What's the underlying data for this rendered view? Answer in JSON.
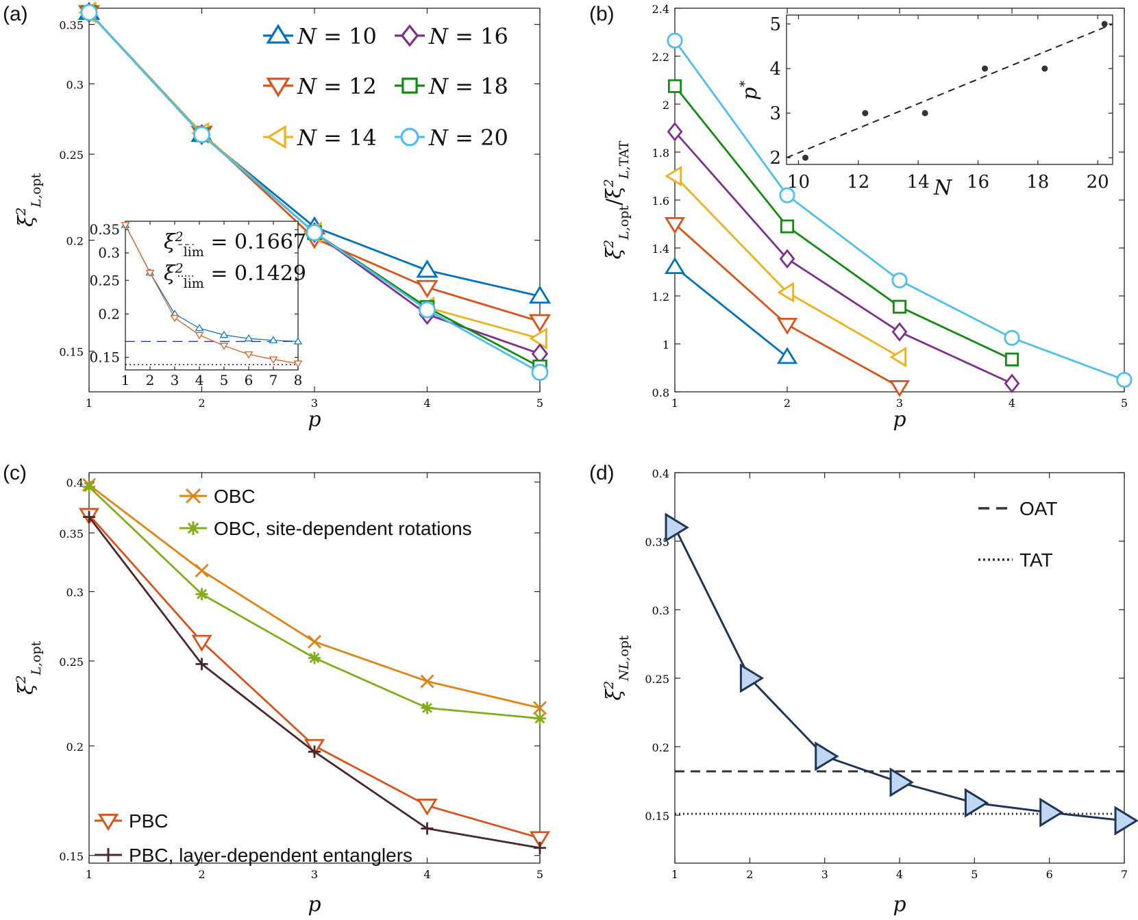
{
  "chart_data": [
    {
      "panel": "(a)",
      "type": "line",
      "xlabel": "p",
      "ylabel": "ξ²_{L,opt}",
      "ylog": true,
      "xlim": [
        1,
        5
      ],
      "ylim": [
        0.135,
        0.365
      ],
      "xticks": [
        1,
        2,
        3,
        4,
        5
      ],
      "yticks": [
        0.15,
        0.2,
        0.25,
        0.3,
        0.35
      ],
      "x": [
        1,
        2,
        3,
        4,
        5
      ],
      "series": [
        {
          "name": "N = 10",
          "color": "#0072BD",
          "marker": "triangle-up",
          "values": [
            0.361,
            0.263,
            0.207,
            0.185,
            0.173
          ]
        },
        {
          "name": "N = 12",
          "color": "#D95319",
          "marker": "triangle-down",
          "values": [
            0.361,
            0.264,
            0.201,
            0.177,
            0.162
          ]
        },
        {
          "name": "N = 14",
          "color": "#EDB120",
          "marker": "triangle-left",
          "values": [
            0.361,
            0.264,
            0.204,
            0.168,
            0.155
          ]
        },
        {
          "name": "N = 16",
          "color": "#7E2F8E",
          "marker": "diamond",
          "values": [
            0.361,
            0.263,
            0.204,
            0.165,
            0.149
          ]
        },
        {
          "name": "N = 18",
          "color": "#118C11",
          "marker": "square",
          "values": [
            0.361,
            0.263,
            0.204,
            0.168,
            0.144
          ]
        },
        {
          "name": "N = 20",
          "color": "#4DBEEE",
          "marker": "circle",
          "values": [
            0.361,
            0.263,
            0.204,
            0.167,
            0.142
          ]
        }
      ],
      "inset": {
        "x": [
          1,
          2,
          3,
          4,
          5,
          6,
          7,
          8
        ],
        "xlim": [
          1,
          8
        ],
        "ylim": [
          0.138,
          0.37
        ],
        "xticks": [
          1,
          2,
          3,
          4,
          5,
          6,
          7,
          8
        ],
        "yticks": [
          0.15,
          0.2,
          0.25,
          0.3,
          0.35
        ],
        "series": [
          {
            "name": "blue",
            "color": "#0072BD",
            "marker": "triangle-up",
            "values": [
              0.361,
              0.263,
              0.2,
              0.182,
              0.174,
              0.17,
              0.168,
              0.1667
            ]
          },
          {
            "name": "orange",
            "color": "#D95319",
            "marker": "triangle-down",
            "values": [
              0.361,
              0.263,
              0.195,
              0.174,
              0.162,
              0.153,
              0.148,
              0.144
            ]
          }
        ],
        "hlines": [
          {
            "value": 0.1667,
            "style": "dashed",
            "color": "#1f3a7a",
            "label": "ξ²_lim = 0.1667"
          },
          {
            "value": 0.1429,
            "style": "dotted",
            "color": "#111111",
            "label": "ξ²_lim = 0.1429"
          }
        ]
      }
    },
    {
      "panel": "(b)",
      "type": "line",
      "xlabel": "p",
      "ylabel": "ξ²_{L,opt}/ξ²_{L,TAT}",
      "xlim": [
        1,
        5
      ],
      "ylim": [
        0.8,
        2.4
      ],
      "xticks": [
        1,
        2,
        3,
        4,
        5
      ],
      "yticks": [
        0.8,
        1,
        1.2,
        1.4,
        1.6,
        1.8,
        2,
        2.2,
        2.4
      ],
      "series": [
        {
          "name": "N = 10",
          "color": "#0072BD",
          "marker": "triangle-up",
          "x": [
            1,
            2
          ],
          "values": [
            1.32,
            0.945
          ]
        },
        {
          "name": "N = 12",
          "color": "#D95319",
          "marker": "triangle-down",
          "x": [
            1,
            2,
            3
          ],
          "values": [
            1.5,
            1.08,
            0.82
          ]
        },
        {
          "name": "N = 14",
          "color": "#EDB120",
          "marker": "triangle-left",
          "x": [
            1,
            2,
            3
          ],
          "values": [
            1.7,
            1.215,
            0.945
          ]
        },
        {
          "name": "N = 16",
          "color": "#7E2F8E",
          "marker": "diamond",
          "x": [
            1,
            2,
            3,
            4
          ],
          "values": [
            1.885,
            1.355,
            1.05,
            0.835
          ]
        },
        {
          "name": "N = 18",
          "color": "#118C11",
          "marker": "square",
          "x": [
            1,
            2,
            3,
            4
          ],
          "values": [
            2.075,
            1.49,
            1.155,
            0.935
          ]
        },
        {
          "name": "N = 20",
          "color": "#4DBEEE",
          "marker": "circle",
          "x": [
            1,
            2,
            3,
            4,
            5
          ],
          "values": [
            2.265,
            1.62,
            1.265,
            1.025,
            0.85
          ]
        }
      ],
      "inset": {
        "type": "scatter",
        "xlabel": "N",
        "ylabel": "p*",
        "xlim": [
          9.6,
          20.5
        ],
        "ylim": [
          1.85,
          5.2
        ],
        "xticks": [
          10,
          12,
          14,
          16,
          18,
          20
        ],
        "yticks": [
          2,
          3,
          4,
          5
        ],
        "x": [
          10,
          12,
          14,
          16,
          18,
          20
        ],
        "values": [
          2,
          3,
          3,
          4,
          4,
          5
        ],
        "fit": {
          "x": [
            9.6,
            20.5
          ],
          "values": [
            2.0,
            5.0
          ],
          "style": "dashed"
        }
      }
    },
    {
      "panel": "(c)",
      "type": "line",
      "xlabel": "p",
      "ylabel": "ξ²_{L,opt}",
      "ylog": true,
      "xlim": [
        1,
        5
      ],
      "ylim": [
        0.147,
        0.41
      ],
      "xticks": [
        1,
        2,
        3,
        4,
        5
      ],
      "yticks": [
        0.15,
        0.2,
        0.25,
        0.3,
        0.35,
        0.4
      ],
      "x": [
        1,
        2,
        3,
        4,
        5
      ],
      "series": [
        {
          "name": "OBC",
          "color": "#E08214",
          "marker": "x",
          "values": [
            0.397,
            0.317,
            0.263,
            0.237,
            0.221
          ]
        },
        {
          "name": "OBC, site-dependent rotations",
          "color": "#7FAE1A",
          "marker": "asterisk",
          "values": [
            0.395,
            0.298,
            0.252,
            0.221,
            0.215
          ]
        },
        {
          "name": "PBC",
          "color": "#D95319",
          "marker": "triangle-down",
          "values": [
            0.367,
            0.263,
            0.2,
            0.171,
            0.157
          ]
        },
        {
          "name": "PBC, layer-dependent entanglers",
          "color": "#4A2828",
          "marker": "plus",
          "values": [
            0.365,
            0.248,
            0.197,
            0.161,
            0.153
          ]
        }
      ]
    },
    {
      "panel": "(d)",
      "type": "line",
      "xlabel": "p",
      "ylabel": "ξ²_{NL,opt}",
      "xlim": [
        1,
        7
      ],
      "ylim": [
        0.115,
        0.4
      ],
      "xticks": [
        1,
        2,
        3,
        4,
        5,
        6,
        7
      ],
      "yticks": [
        0.15,
        0.2,
        0.25,
        0.3,
        0.35,
        0.4
      ],
      "x": [
        1,
        2,
        3,
        4,
        5,
        6,
        7
      ],
      "series": [
        {
          "name": "data",
          "color": "#1F3556",
          "fill": "#BFD7F2",
          "marker": "triangle-right",
          "values": [
            0.36,
            0.25,
            0.193,
            0.174,
            0.159,
            0.152,
            0.146
          ]
        }
      ],
      "hlines": [
        {
          "name": "OAT",
          "value": 0.182,
          "style": "dashed",
          "color": "#333333"
        },
        {
          "name": "TAT",
          "value": 0.151,
          "style": "dotted",
          "color": "#333333"
        }
      ]
    }
  ]
}
